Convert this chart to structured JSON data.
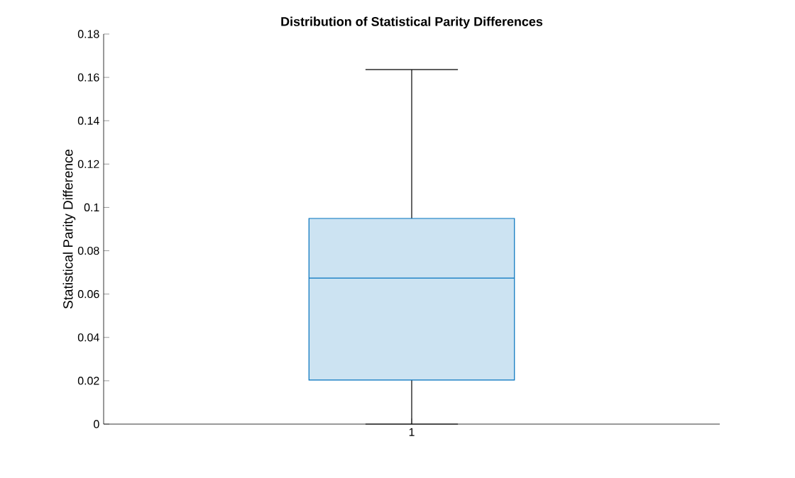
{
  "chart_data": {
    "type": "box",
    "title": "Distribution of Statistical Parity Differences",
    "ylabel": "Statistical Parity Difference",
    "categories": [
      "1"
    ],
    "series": [
      {
        "color": "#0072bd",
        "boxes": [
          {
            "low": 0,
            "q1": 0.0203,
            "median": 0.0674,
            "q3": 0.0949,
            "high": 0.1636
          }
        ]
      }
    ],
    "ylim": [
      0,
      0.18
    ],
    "yticks": [
      0,
      0.02,
      0.04,
      0.06,
      0.08,
      0.1,
      0.12,
      0.14,
      0.16,
      0.18
    ]
  }
}
